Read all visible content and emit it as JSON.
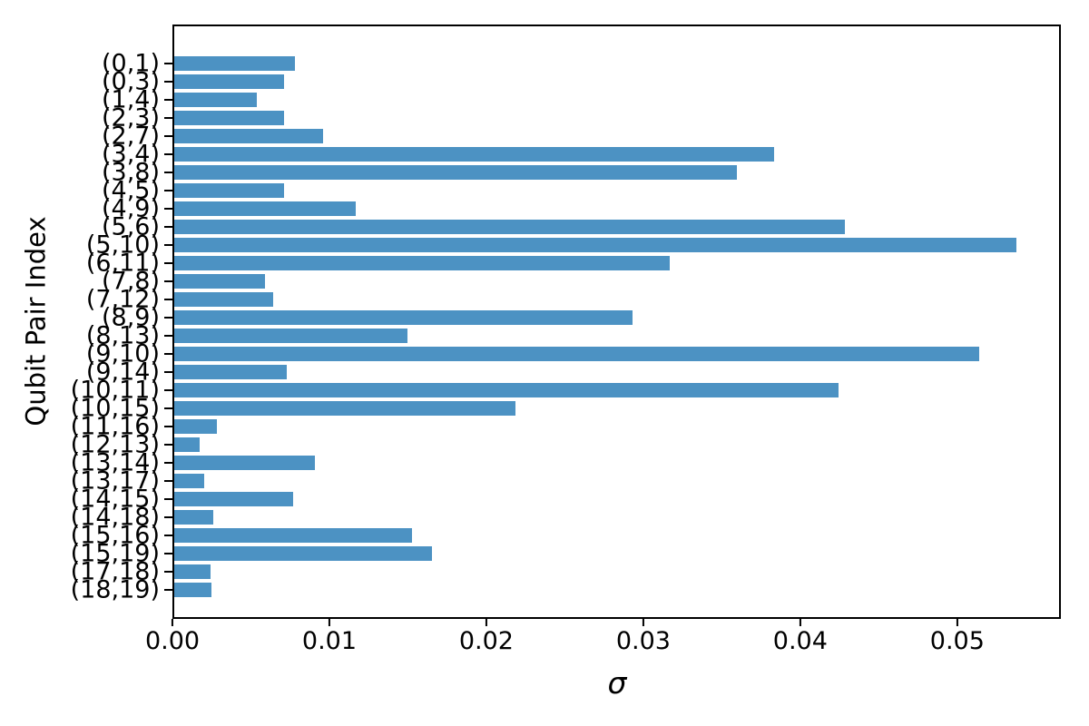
{
  "chart_data": {
    "type": "bar",
    "orientation": "horizontal",
    "title": "",
    "xlabel": "σ",
    "ylabel": "Qubit Pair Index",
    "categories": [
      "(0,1)",
      "(0,3)",
      "(1,4)",
      "(2,3)",
      "(2,7)",
      "(3,4)",
      "(3,8)",
      "(4,5)",
      "(4,9)",
      "(5,6)",
      "(5,10)",
      "(6,11)",
      "(7,8)",
      "(7,12)",
      "(8,9)",
      "(8,13)",
      "(9,10)",
      "(9,14)",
      "(10,11)",
      "(10,15)",
      "(11,16)",
      "(12,13)",
      "(13,14)",
      "(13,17)",
      "(14,15)",
      "(14,18)",
      "(15,16)",
      "(15,19)",
      "(17,18)",
      "(18,19)"
    ],
    "values": [
      0.0077,
      0.007,
      0.0053,
      0.007,
      0.0095,
      0.0384,
      0.036,
      0.007,
      0.0116,
      0.0429,
      0.0539,
      0.0317,
      0.0058,
      0.0063,
      0.0293,
      0.0149,
      0.0515,
      0.0072,
      0.0425,
      0.0218,
      0.0027,
      0.0016,
      0.009,
      0.0019,
      0.0076,
      0.0025,
      0.0152,
      0.0165,
      0.0023,
      0.0024
    ],
    "xlim": [
      0,
      0.0566
    ],
    "x_ticks": [
      0,
      0.01,
      0.02,
      0.03,
      0.04,
      0.05
    ],
    "x_tick_labels": [
      "0.00",
      "0.01",
      "0.02",
      "0.03",
      "0.04",
      "0.05"
    ],
    "bar_color": "#4c92c3",
    "axis_color": "#000000",
    "grid": false,
    "legend_position": "none"
  }
}
